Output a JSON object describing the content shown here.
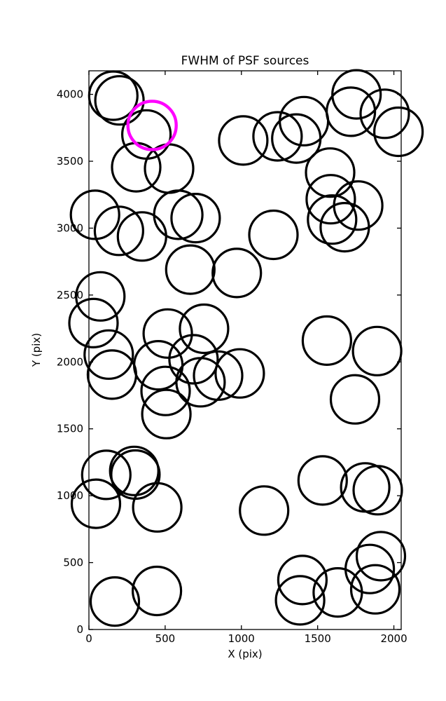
{
  "figure": {
    "background": "#ffffff"
  },
  "chart_data": {
    "type": "scatter",
    "title": "FWHM of PSF sources",
    "xlabel": "X (pix)",
    "ylabel": "Y (pix)",
    "xlim": [
      0,
      2048
    ],
    "ylim": [
      0,
      4176
    ],
    "xticks": [
      0,
      500,
      1000,
      1500,
      2000
    ],
    "yticks": [
      0,
      500,
      1000,
      1500,
      2000,
      2500,
      3000,
      3500,
      4000
    ],
    "grid": false,
    "legend": null,
    "marker_style": {
      "shape": "open-circle",
      "radius_px": 34.5,
      "stroke_px": 3.2,
      "stroke_color": "#000000",
      "fill": "none"
    },
    "highlight_point": {
      "x": 414,
      "y": 3768,
      "stroke_color": "#ff00ff",
      "stroke_px": 4.4,
      "meaning": "highlighted PSF source"
    },
    "points": [
      [
        160,
        3990
      ],
      [
        200,
        3955
      ],
      [
        377,
        3700
      ],
      [
        310,
        3455
      ],
      [
        526,
        3445
      ],
      [
        586,
        3100
      ],
      [
        700,
        3075
      ],
      [
        197,
        2980
      ],
      [
        348,
        2938
      ],
      [
        40,
        3100
      ],
      [
        1012,
        3655
      ],
      [
        1237,
        3686
      ],
      [
        1360,
        3670
      ],
      [
        1410,
        3800
      ],
      [
        1755,
        4000
      ],
      [
        1718,
        3870
      ],
      [
        1940,
        3855
      ],
      [
        2030,
        3720
      ],
      [
        1582,
        3415
      ],
      [
        1586,
        3216
      ],
      [
        1766,
        3169
      ],
      [
        1595,
        3064
      ],
      [
        1678,
        3007
      ],
      [
        665,
        2690
      ],
      [
        970,
        2665
      ],
      [
        1210,
        2950
      ],
      [
        75,
        2490
      ],
      [
        30,
        2290
      ],
      [
        517,
        2212
      ],
      [
        755,
        2248
      ],
      [
        686,
        2020
      ],
      [
        130,
        2055
      ],
      [
        151,
        1905
      ],
      [
        455,
        1975
      ],
      [
        503,
        1783
      ],
      [
        508,
        1610
      ],
      [
        732,
        1848
      ],
      [
        847,
        1898
      ],
      [
        989,
        1914
      ],
      [
        1561,
        2159
      ],
      [
        1890,
        2081
      ],
      [
        1745,
        1720
      ],
      [
        114,
        1156
      ],
      [
        297,
        1185
      ],
      [
        305,
        1158
      ],
      [
        46,
        940
      ],
      [
        448,
        913
      ],
      [
        170,
        209
      ],
      [
        446,
        288
      ],
      [
        1149,
        889
      ],
      [
        1533,
        1114
      ],
      [
        1812,
        1062
      ],
      [
        1894,
        1041
      ],
      [
        1400,
        370
      ],
      [
        1385,
        218
      ],
      [
        1632,
        277
      ],
      [
        1842,
        452
      ],
      [
        1878,
        300
      ],
      [
        1915,
        548
      ]
    ]
  }
}
